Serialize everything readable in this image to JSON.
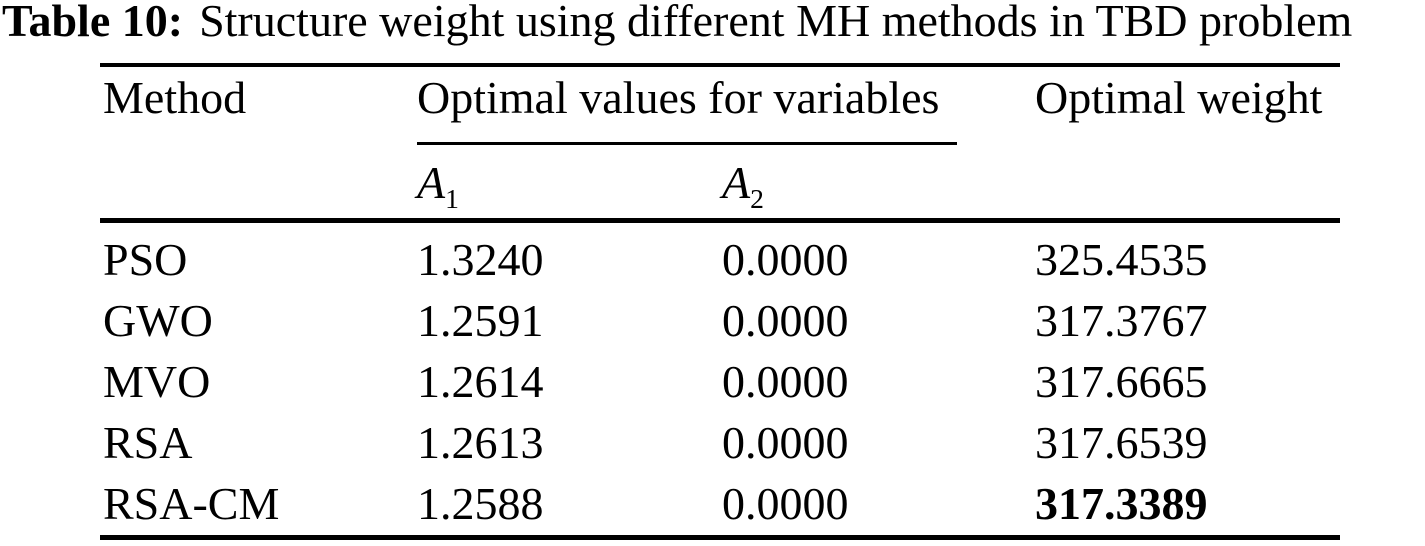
{
  "caption": {
    "label": "Table 10:",
    "text": "Structure weight using different MH methods in TBD problem"
  },
  "table": {
    "headers": {
      "method": "Method",
      "group": "Optimal values for variables",
      "weight": "Optimal weight"
    },
    "variables": [
      {
        "base": "A",
        "sub": "1"
      },
      {
        "base": "A",
        "sub": "2"
      }
    ],
    "rows": [
      {
        "method": "PSO",
        "a1": "1.3240",
        "a2": "0.0000",
        "weight": "325.4535"
      },
      {
        "method": "GWO",
        "a1": "1.2591",
        "a2": "0.0000",
        "weight": "317.3767"
      },
      {
        "method": "MVO",
        "a1": "1.2614",
        "a2": "0.0000",
        "weight": "317.6665"
      },
      {
        "method": "RSA",
        "a1": "1.2613",
        "a2": "0.0000",
        "weight": "317.6539"
      },
      {
        "method": "RSA-CM",
        "a1": "1.2588",
        "a2": "0.0000",
        "weight": "317.3389"
      }
    ],
    "best_weight_row": "RSA-CM"
  },
  "colors": {
    "background": "#ffffff",
    "text": "#000000",
    "rule": "#000000"
  }
}
